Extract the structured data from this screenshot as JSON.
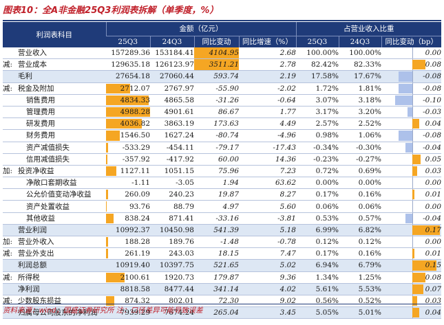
{
  "title": "图表10：全A非金融25Q3利润表拆解（单季度，%）",
  "source": "资料来源：wind，国盛证券研究所   注：口径差异可能导致误差",
  "header": {
    "item_col": "利润表科目",
    "group_amount": "金额（亿元）",
    "group_share": "占营业收入比重",
    "cols": [
      "25Q3",
      "24Q3",
      "同比变动",
      "同比增速（%）",
      "25Q3",
      "24Q3",
      "同比变动（bp）"
    ]
  },
  "colors": {
    "header_bg": "#1f3b79",
    "bar_orange": "#f5a623",
    "bar_blue": "#adc1ea",
    "shade": "#dde7f4",
    "title_red": "#c0202a"
  },
  "rows": [
    {
      "prefix": "",
      "label": "营业收入",
      "indent": 0,
      "shade": false,
      "a25": "157289.36",
      "a24": "153184.41",
      "chg": "4104.95",
      "yoy": "2.68",
      "s25": "100.00%",
      "s24": "100.00%",
      "bp": "0.00",
      "bp_val": 0.0,
      "bar_pct": 0,
      "chg_hl": true
    },
    {
      "prefix": "减:",
      "label": "营业成本",
      "indent": 0,
      "shade": false,
      "a25": "129635.18",
      "a24": "126123.97",
      "chg": "3511.21",
      "yoy": "2.78",
      "s25": "82.42%",
      "s24": "82.33%",
      "bp": "0.08",
      "bp_val": 0.08,
      "bar_pct": 0,
      "chg_hl": true
    },
    {
      "prefix": "",
      "label": "毛利",
      "indent": 0,
      "shade": true,
      "a25": "27654.18",
      "a24": "27060.44",
      "chg": "593.74",
      "yoy": "2.19",
      "s25": "17.58%",
      "s24": "17.67%",
      "bp": "-0.08",
      "bp_val": -0.08,
      "bar_pct": 0,
      "chg_hl": false
    },
    {
      "prefix": "减:",
      "label": "税金及附加",
      "indent": 0,
      "shade": false,
      "a25": "2712.07",
      "a24": "2767.97",
      "chg": "-55.90",
      "yoy": "-2.02",
      "s25": "1.72%",
      "s24": "1.81%",
      "bp": "-0.08",
      "bp_val": -0.08,
      "bar_pct": 0.54,
      "chg_hl": false
    },
    {
      "prefix": "",
      "label": "销售费用",
      "indent": 1,
      "shade": false,
      "a25": "4834.33",
      "a24": "4865.58",
      "chg": "-31.26",
      "yoy": "-0.64",
      "s25": "3.07%",
      "s24": "3.18%",
      "bp": "-0.10",
      "bp_val": -0.1,
      "bar_pct": 0.97,
      "chg_hl": false
    },
    {
      "prefix": "",
      "label": "管理费用",
      "indent": 1,
      "shade": false,
      "a25": "4988.28",
      "a24": "4901.61",
      "chg": "86.67",
      "yoy": "1.77",
      "s25": "3.17%",
      "s24": "3.20%",
      "bp": "-0.03",
      "bp_val": -0.03,
      "bar_pct": 1.0,
      "chg_hl": false
    },
    {
      "prefix": "",
      "label": "研发费用",
      "indent": 1,
      "shade": false,
      "a25": "4036.82",
      "a24": "3863.19",
      "chg": "173.63",
      "yoy": "4.49",
      "s25": "2.57%",
      "s24": "2.52%",
      "bp": "0.04",
      "bp_val": 0.04,
      "bar_pct": 0.81,
      "chg_hl": false
    },
    {
      "prefix": "",
      "label": "财务费用",
      "indent": 1,
      "shade": false,
      "a25": "1546.50",
      "a24": "1627.24",
      "chg": "-80.74",
      "yoy": "-4.96",
      "s25": "0.98%",
      "s24": "1.06%",
      "bp": "-0.08",
      "bp_val": -0.08,
      "bar_pct": 0.31,
      "chg_hl": false
    },
    {
      "prefix": "",
      "label": "资产减值损失",
      "indent": 1,
      "shade": false,
      "a25": "-533.29",
      "a24": "-454.11",
      "chg": "-79.17",
      "yoy": "-17.43",
      "s25": "-0.34%",
      "s24": "-0.30%",
      "bp": "-0.04",
      "bp_val": -0.04,
      "bar_pct": 0.04,
      "chg_hl": false
    },
    {
      "prefix": "",
      "label": "信用减值损失",
      "indent": 1,
      "shade": false,
      "a25": "-357.92",
      "a24": "-417.92",
      "chg": "60.00",
      "yoy": "14.36",
      "s25": "-0.23%",
      "s24": "-0.27%",
      "bp": "0.05",
      "bp_val": 0.05,
      "bar_pct": 0.03,
      "chg_hl": false
    },
    {
      "prefix": "加:",
      "label": "投资净收益",
      "indent": 0,
      "shade": false,
      "a25": "1127.11",
      "a24": "1051.15",
      "chg": "75.96",
      "yoy": "7.23",
      "s25": "0.72%",
      "s24": "0.69%",
      "bp": "0.03",
      "bp_val": 0.03,
      "bar_pct": 0.23,
      "chg_hl": false
    },
    {
      "prefix": "",
      "label": "净敞口套期收益",
      "indent": 1,
      "shade": false,
      "a25": "-1.11",
      "a24": "-3.05",
      "chg": "1.94",
      "yoy": "63.62",
      "s25": "0.00%",
      "s24": "0.00%",
      "bp": "0.00",
      "bp_val": 0.0,
      "bar_pct": 0,
      "chg_hl": false
    },
    {
      "prefix": "",
      "label": "公允价值变动净收益",
      "indent": 1,
      "shade": false,
      "a25": "260.09",
      "a24": "240.23",
      "chg": "19.87",
      "yoy": "8.27",
      "s25": "0.17%",
      "s24": "0.16%",
      "bp": "0.01",
      "bp_val": 0.01,
      "bar_pct": 0.05,
      "chg_hl": false
    },
    {
      "prefix": "",
      "label": "资产处置收益",
      "indent": 1,
      "shade": false,
      "a25": "93.76",
      "a24": "88.79",
      "chg": "4.97",
      "yoy": "5.60",
      "s25": "0.06%",
      "s24": "0.06%",
      "bp": "0.00",
      "bp_val": 0.0,
      "bar_pct": 0.02,
      "chg_hl": false
    },
    {
      "prefix": "",
      "label": "其他收益",
      "indent": 1,
      "shade": false,
      "a25": "838.24",
      "a24": "871.41",
      "chg": "-33.16",
      "yoy": "-3.81",
      "s25": "0.53%",
      "s24": "0.57%",
      "bp": "-0.04",
      "bp_val": -0.04,
      "bar_pct": 0.17,
      "chg_hl": false
    },
    {
      "prefix": "",
      "label": "营业利润",
      "indent": 0,
      "shade": true,
      "a25": "10992.37",
      "a24": "10450.98",
      "chg": "541.39",
      "yoy": "5.18",
      "s25": "6.99%",
      "s24": "6.82%",
      "bp": "0.17",
      "bp_val": 0.17,
      "bar_pct": 0,
      "chg_hl": false
    },
    {
      "prefix": "加:",
      "label": "营业外收入",
      "indent": 0,
      "shade": false,
      "a25": "188.28",
      "a24": "189.76",
      "chg": "-1.48",
      "yoy": "-0.78",
      "s25": "0.12%",
      "s24": "0.12%",
      "bp": "0.00",
      "bp_val": 0.0,
      "bar_pct": 0.04,
      "chg_hl": false
    },
    {
      "prefix": "减:",
      "label": "营业外支出",
      "indent": 0,
      "shade": false,
      "a25": "261.19",
      "a24": "243.03",
      "chg": "18.15",
      "yoy": "7.47",
      "s25": "0.17%",
      "s24": "0.16%",
      "bp": "0.01",
      "bp_val": 0.01,
      "bar_pct": 0.05,
      "chg_hl": false
    },
    {
      "prefix": "",
      "label": "利润总额",
      "indent": 0,
      "shade": true,
      "a25": "10919.40",
      "a24": "10397.75",
      "chg": "521.65",
      "yoy": "5.02",
      "s25": "6.94%",
      "s24": "6.79%",
      "bp": "0.15",
      "bp_val": 0.15,
      "bar_pct": 0,
      "chg_hl": false
    },
    {
      "prefix": "减:",
      "label": "所得税",
      "indent": 0,
      "shade": false,
      "a25": "2100.61",
      "a24": "1920.73",
      "chg": "179.87",
      "yoy": "9.36",
      "s25": "1.34%",
      "s24": "1.25%",
      "bp": "0.08",
      "bp_val": 0.08,
      "bar_pct": 0.42,
      "chg_hl": false
    },
    {
      "prefix": "",
      "label": "净利润",
      "indent": 0,
      "shade": true,
      "a25": "8818.58",
      "a24": "8477.44",
      "chg": "341.14",
      "yoy": "4.02",
      "s25": "5.61%",
      "s24": "5.53%",
      "bp": "0.07",
      "bp_val": 0.07,
      "bar_pct": 0,
      "chg_hl": false
    },
    {
      "prefix": "减:",
      "label": "少数股东损益",
      "indent": 0,
      "shade": false,
      "a25": "874.32",
      "a24": "802.01",
      "chg": "72.30",
      "yoy": "9.02",
      "s25": "0.56%",
      "s24": "0.52%",
      "bp": "0.03",
      "bp_val": 0.03,
      "bar_pct": 0.18,
      "chg_hl": false
    },
    {
      "prefix": "",
      "label": "归属母公司股东的净利润",
      "indent": 0,
      "shade": true,
      "a25": "7939.29",
      "a24": "7674.24",
      "chg": "265.04",
      "yoy": "3.45",
      "s25": "5.05%",
      "s24": "5.01%",
      "bp": "0.04",
      "bp_val": 0.04,
      "bar_pct": 0,
      "chg_hl": false
    }
  ]
}
